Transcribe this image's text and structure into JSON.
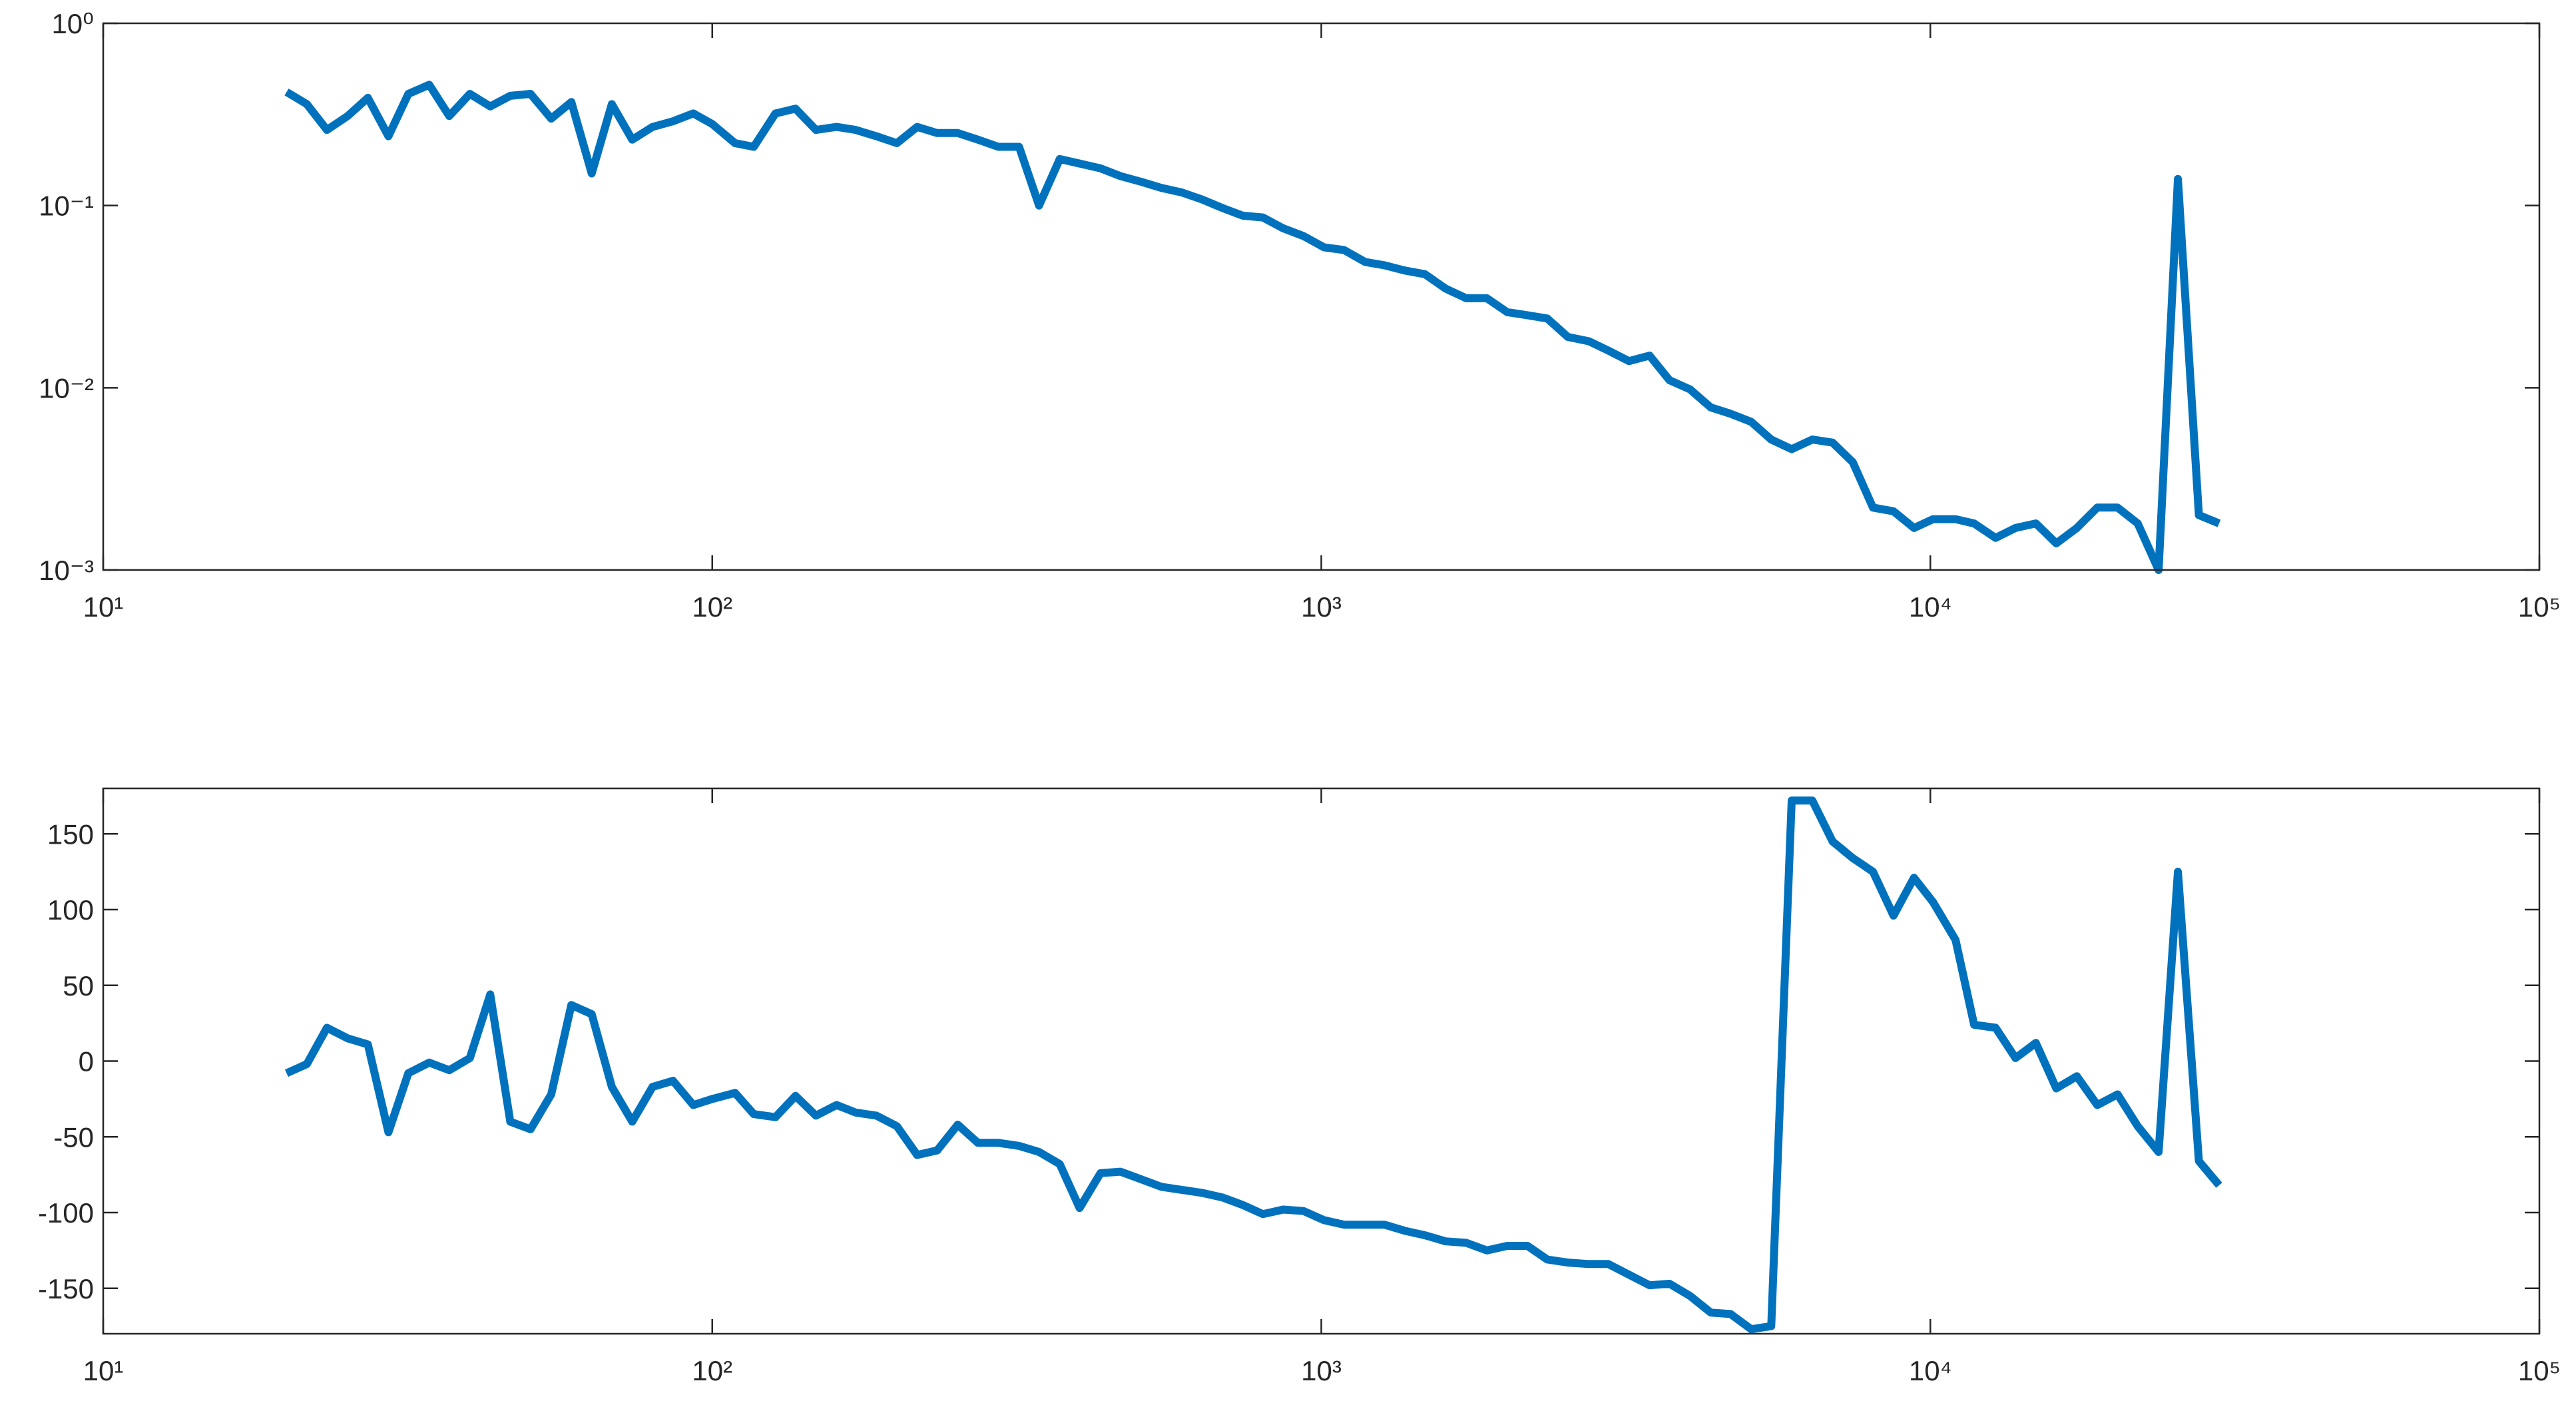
{
  "chart_data": [
    {
      "type": "line",
      "xscale": "log",
      "yscale": "log",
      "color": "#0072BD",
      "x": [
        20.0,
        21.6,
        23.3,
        25.2,
        27.2,
        29.4,
        31.7,
        34.3,
        37.0,
        40.0,
        43.2,
        46.6,
        50.3,
        54.4,
        58.7,
        63.4,
        68.4,
        73.9,
        79.8,
        86.2,
        93.1,
        100,
        109,
        117,
        127,
        137,
        148,
        160,
        172,
        186,
        201,
        217,
        234,
        253,
        273,
        295,
        319,
        344,
        372,
        401,
        434,
        468,
        506,
        546,
        590,
        637,
        688,
        743,
        802,
        866,
        935,
        1010,
        1090,
        1180,
        1270,
        1370,
        1480,
        1600,
        1730,
        1870,
        2020,
        2180,
        2350,
        2540,
        2750,
        2960,
        3200,
        3460,
        3730,
        4030,
        4360,
        4700,
        5080,
        5480,
        5920,
        6400,
        6910,
        7460,
        8050,
        8700,
        9400,
        10100,
        11000,
        11800,
        12800,
        13800,
        14900,
        16100,
        17400,
        18800,
        20300,
        21900,
        23700,
        25500,
        27600,
        29800
      ],
      "values": [
        0.42,
        0.36,
        0.26,
        0.31,
        0.39,
        0.24,
        0.41,
        0.46,
        0.31,
        0.41,
        0.35,
        0.4,
        0.41,
        0.3,
        0.37,
        0.15,
        0.36,
        0.23,
        0.27,
        0.29,
        0.32,
        0.28,
        0.22,
        0.21,
        0.32,
        0.34,
        0.26,
        0.27,
        0.26,
        0.24,
        0.22,
        0.27,
        0.25,
        0.25,
        0.23,
        0.21,
        0.21,
        0.1,
        0.18,
        0.17,
        0.16,
        0.145,
        0.135,
        0.125,
        0.118,
        0.108,
        0.097,
        0.088,
        0.086,
        0.075,
        0.068,
        0.059,
        0.057,
        0.049,
        0.047,
        0.044,
        0.042,
        0.035,
        0.031,
        0.031,
        0.026,
        0.025,
        0.024,
        0.019,
        0.018,
        0.016,
        0.014,
        0.015,
        0.011,
        0.0098,
        0.0078,
        0.0072,
        0.0065,
        0.0052,
        0.0046,
        0.0052,
        0.005,
        0.0039,
        0.0022,
        0.0021,
        0.0017,
        0.0019,
        0.0019,
        0.0018,
        0.0015,
        0.0017,
        0.0018,
        0.0014,
        0.0017,
        0.0022,
        0.0022,
        0.0018,
        0.001,
        0.14,
        0.002,
        0.0018
      ],
      "xlim": [
        10,
        100000
      ],
      "xticks": [
        {
          "value": 10,
          "label": "10¹"
        },
        {
          "value": 100,
          "label": "10²"
        },
        {
          "value": 1000,
          "label": "10³"
        },
        {
          "value": 10000,
          "label": "10⁴"
        },
        {
          "value": 100000,
          "label": "10⁵"
        }
      ],
      "ylim": [
        0.001,
        1
      ],
      "yticks": [
        {
          "value": 0.001,
          "label": "10⁻³"
        },
        {
          "value": 0.01,
          "label": "10⁻²"
        },
        {
          "value": 0.1,
          "label": "10⁻¹"
        },
        {
          "value": 1,
          "label": "10⁰"
        }
      ]
    },
    {
      "type": "line",
      "xscale": "log",
      "yscale": "linear",
      "color": "#0072BD",
      "x": [
        20.0,
        21.6,
        23.3,
        25.2,
        27.2,
        29.4,
        31.7,
        34.3,
        37.0,
        40.0,
        43.2,
        46.6,
        50.3,
        54.4,
        58.7,
        63.4,
        68.4,
        73.9,
        79.8,
        86.2,
        93.1,
        100,
        109,
        117,
        127,
        137,
        148,
        160,
        172,
        186,
        201,
        217,
        234,
        253,
        273,
        295,
        319,
        344,
        372,
        401,
        434,
        468,
        506,
        546,
        590,
        637,
        688,
        743,
        802,
        866,
        935,
        1010,
        1090,
        1180,
        1270,
        1370,
        1480,
        1600,
        1730,
        1870,
        2020,
        2180,
        2350,
        2540,
        2750,
        2960,
        3200,
        3460,
        3730,
        4030,
        4360,
        4700,
        5080,
        5480,
        5920,
        6400,
        6910,
        7460,
        8050,
        8700,
        9400,
        10100,
        11000,
        11800,
        12800,
        13800,
        14900,
        16100,
        17400,
        18800,
        20300,
        21900,
        23700,
        25500,
        27600,
        29800
      ],
      "values": [
        -8,
        -2,
        22,
        15,
        11,
        -47,
        -8,
        -1,
        -6,
        2,
        44,
        -40,
        -45,
        -22,
        37,
        31,
        -17,
        -40,
        -17,
        -13,
        -29,
        -25,
        -21,
        -35,
        -37,
        -23,
        -36,
        -29,
        -34,
        -36,
        -43,
        -62,
        -59,
        -42,
        -54,
        -54,
        -56,
        -60,
        -68,
        -97,
        -74,
        -73,
        -78,
        -83,
        -85,
        -87,
        -90,
        -95,
        -101,
        -98,
        -99,
        -105,
        -108,
        -108,
        -108,
        -112,
        -115,
        -119,
        -120,
        -125,
        -122,
        -122,
        -131,
        -133,
        -134,
        -134,
        -141,
        -148,
        -147,
        -155,
        -166,
        -167,
        -177,
        -175,
        172,
        172,
        145,
        134,
        125,
        96,
        121,
        105,
        80,
        24,
        22,
        2,
        12,
        -18,
        -10,
        -29,
        -22,
        -43,
        -60,
        125,
        -66,
        -82
      ],
      "xlim": [
        10,
        100000
      ],
      "xticks": [
        {
          "value": 10,
          "label": "10¹"
        },
        {
          "value": 100,
          "label": "10²"
        },
        {
          "value": 1000,
          "label": "10³"
        },
        {
          "value": 10000,
          "label": "10⁴"
        },
        {
          "value": 100000,
          "label": "10⁵"
        }
      ],
      "ylim": [
        -180,
        180
      ],
      "yticks": [
        -150,
        -100,
        -50,
        0,
        50,
        100,
        150
      ]
    }
  ]
}
